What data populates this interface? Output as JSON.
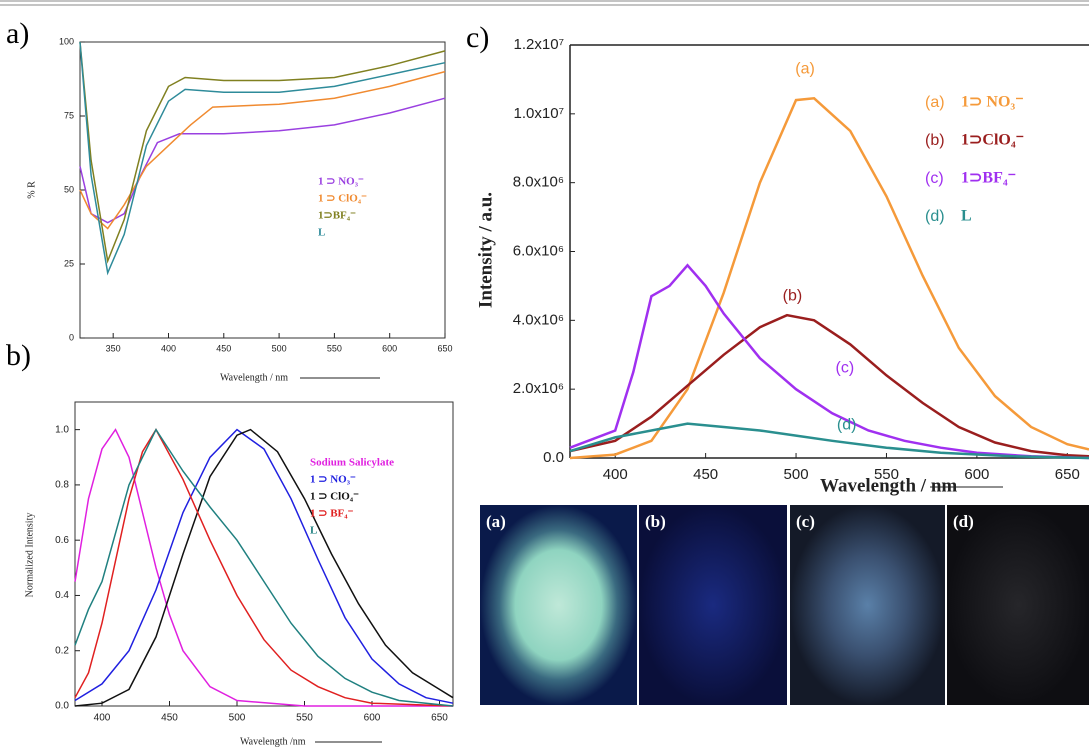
{
  "panels": [
    {
      "label": "a)"
    },
    {
      "label": "b)"
    },
    {
      "label": "c)"
    }
  ],
  "photos": [
    {
      "label": "(a)"
    },
    {
      "label": "(b)"
    },
    {
      "label": "(c)"
    },
    {
      "label": "(d)"
    }
  ],
  "chart_data": [
    {
      "type": "line",
      "xlabel": "Wavelength / nm",
      "ylabel": "% R",
      "xlim": [
        320,
        650
      ],
      "ylim": [
        0,
        100
      ],
      "xticks": [
        350,
        400,
        450,
        500,
        550,
        600,
        650
      ],
      "yticks": [
        0,
        25,
        50,
        75,
        100
      ],
      "series": [
        {
          "name": "1 ⊃ NO₃⁻",
          "color": "#9a40e0",
          "x": [
            320,
            330,
            345,
            360,
            375,
            390,
            410,
            450,
            500,
            550,
            600,
            650
          ],
          "values": [
            58,
            42,
            39,
            42,
            55,
            66,
            69,
            69,
            70,
            72,
            76,
            81
          ]
        },
        {
          "name": "1 ⊃ ClO₄⁻",
          "color": "#f08a30",
          "x": [
            320,
            330,
            345,
            360,
            380,
            400,
            420,
            440,
            500,
            550,
            600,
            650
          ],
          "values": [
            50,
            42,
            37,
            45,
            58,
            65,
            72,
            78,
            79,
            81,
            85,
            90
          ]
        },
        {
          "name": "1⊃BF₄⁻",
          "color": "#808020",
          "x": [
            320,
            330,
            345,
            360,
            380,
            400,
            415,
            450,
            500,
            550,
            600,
            650
          ],
          "values": [
            100,
            60,
            26,
            40,
            70,
            85,
            88,
            87,
            87,
            88,
            92,
            97
          ]
        },
        {
          "name": "L",
          "color": "#2e8b9a",
          "x": [
            320,
            330,
            345,
            360,
            380,
            400,
            415,
            450,
            500,
            550,
            600,
            650
          ],
          "values": [
            100,
            55,
            22,
            35,
            65,
            80,
            84,
            83,
            83,
            85,
            89,
            93
          ]
        }
      ]
    },
    {
      "type": "line",
      "xlabel": "Wavelength /nm",
      "ylabel": "Normalized Intensity",
      "xlim": [
        380,
        660
      ],
      "ylim": [
        0,
        1.1
      ],
      "xticks": [
        400,
        450,
        500,
        550,
        600,
        650
      ],
      "yticks": [
        {
          "value": 0,
          "label": "0.0"
        },
        0.2,
        0.4,
        0.6,
        0.8,
        {
          "value": 1,
          "label": "1.0"
        }
      ],
      "series": [
        {
          "name": "Sodium Salicylate",
          "color": "#e020e0",
          "x": [
            380,
            390,
            400,
            410,
            420,
            430,
            440,
            450,
            460,
            480,
            500,
            550,
            660
          ],
          "values": [
            0.45,
            0.75,
            0.93,
            1.0,
            0.9,
            0.7,
            0.5,
            0.33,
            0.2,
            0.07,
            0.02,
            0,
            0
          ]
        },
        {
          "name": "1 ⊃ NO₃⁻",
          "color": "#2020e0",
          "x": [
            380,
            400,
            420,
            440,
            460,
            480,
            500,
            520,
            540,
            560,
            580,
            600,
            620,
            640,
            660
          ],
          "values": [
            0.02,
            0.08,
            0.2,
            0.42,
            0.7,
            0.9,
            1.0,
            0.93,
            0.75,
            0.53,
            0.32,
            0.17,
            0.08,
            0.03,
            0.01
          ]
        },
        {
          "name": "1 ⊃ ClO₄⁻",
          "color": "#111111",
          "x": [
            380,
            400,
            420,
            440,
            460,
            480,
            500,
            510,
            530,
            550,
            570,
            590,
            610,
            630,
            650,
            660
          ],
          "values": [
            0,
            0.01,
            0.06,
            0.25,
            0.55,
            0.83,
            0.98,
            1.0,
            0.92,
            0.75,
            0.55,
            0.37,
            0.22,
            0.12,
            0.06,
            0.03
          ]
        },
        {
          "name": "1 ⊃ BF₄⁻",
          "color": "#e02020",
          "x": [
            380,
            390,
            400,
            420,
            430,
            440,
            460,
            480,
            500,
            520,
            540,
            560,
            580,
            600,
            660
          ],
          "values": [
            0.03,
            0.12,
            0.3,
            0.75,
            0.92,
            1.0,
            0.82,
            0.6,
            0.4,
            0.24,
            0.13,
            0.07,
            0.03,
            0.01,
            0
          ]
        },
        {
          "name": "L",
          "color": "#208080",
          "x": [
            380,
            390,
            400,
            420,
            440,
            460,
            480,
            500,
            520,
            540,
            560,
            580,
            600,
            620,
            660
          ],
          "values": [
            0.22,
            0.35,
            0.45,
            0.8,
            1.0,
            0.85,
            0.72,
            0.6,
            0.45,
            0.3,
            0.18,
            0.1,
            0.05,
            0.02,
            0
          ]
        }
      ]
    },
    {
      "type": "line",
      "xlabel": "Wavelength / nm",
      "ylabel": "Intensity / a.u.",
      "xlim": [
        375,
        662
      ],
      "ylim": [
        0,
        12000000
      ],
      "xticks": [
        400,
        450,
        500,
        550,
        600,
        650
      ],
      "yticks": [
        {
          "value": 0,
          "label": "0.0"
        },
        {
          "value": 2000000,
          "label": "2.0x10⁶"
        },
        {
          "value": 4000000,
          "label": "4.0x10⁶"
        },
        {
          "value": 6000000,
          "label": "6.0x10⁶"
        },
        {
          "value": 8000000,
          "label": "8.0x10⁶"
        },
        {
          "value": 10000000,
          "label": "1.0x10⁷"
        },
        {
          "value": 12000000,
          "label": "1.2x10⁷"
        }
      ],
      "series": [
        {
          "tag": "(a)",
          "name": "1⊃ NO₃⁻",
          "color": "#f59a3a",
          "x": [
            375,
            400,
            420,
            440,
            460,
            480,
            500,
            510,
            530,
            550,
            570,
            590,
            610,
            630,
            650,
            662
          ],
          "values": [
            0,
            100000,
            500000,
            2000000,
            4800000,
            8000000,
            10400000,
            10450000,
            9500000,
            7600000,
            5300000,
            3200000,
            1800000,
            900000,
            400000,
            250000
          ]
        },
        {
          "tag": "(b)",
          "name": "1⊃ClO₄⁻",
          "color": "#9a1e1e",
          "x": [
            375,
            400,
            420,
            440,
            460,
            480,
            495,
            510,
            530,
            550,
            570,
            590,
            610,
            630,
            650,
            662
          ],
          "values": [
            200000,
            500000,
            1200000,
            2100000,
            3000000,
            3800000,
            4150000,
            4000000,
            3300000,
            2400000,
            1600000,
            900000,
            450000,
            200000,
            80000,
            50000
          ]
        },
        {
          "tag": "(c)",
          "name": "1⊃BF₄⁻",
          "color": "#a030f0",
          "x": [
            375,
            400,
            410,
            420,
            430,
            440,
            450,
            460,
            480,
            500,
            520,
            540,
            560,
            580,
            600,
            630,
            662
          ],
          "values": [
            300000,
            800000,
            2500000,
            4700000,
            5000000,
            5600000,
            5000000,
            4200000,
            2900000,
            2000000,
            1300000,
            800000,
            500000,
            300000,
            150000,
            50000,
            0
          ]
        },
        {
          "tag": "(d)",
          "name": "L",
          "color": "#2a8f8f",
          "x": [
            375,
            400,
            420,
            440,
            460,
            480,
            500,
            520,
            550,
            580,
            620,
            662
          ],
          "values": [
            200000,
            600000,
            800000,
            1000000,
            900000,
            800000,
            650000,
            500000,
            300000,
            150000,
            50000,
            0
          ]
        }
      ]
    }
  ]
}
